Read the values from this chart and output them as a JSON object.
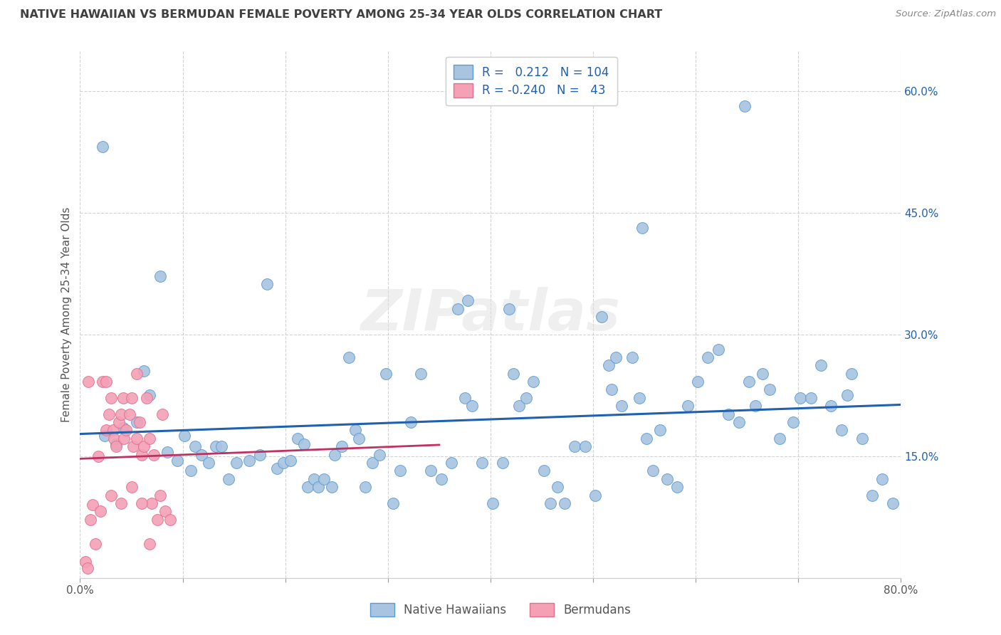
{
  "title": "NATIVE HAWAIIAN VS BERMUDAN FEMALE POVERTY AMONG 25-34 YEAR OLDS CORRELATION CHART",
  "source": "Source: ZipAtlas.com",
  "ylabel": "Female Poverty Among 25-34 Year Olds",
  "xlim": [
    0,
    0.8
  ],
  "ylim": [
    0,
    0.65
  ],
  "xticks": [
    0.0,
    0.1,
    0.2,
    0.3,
    0.4,
    0.5,
    0.6,
    0.7,
    0.8
  ],
  "yticks": [
    0.0,
    0.15,
    0.3,
    0.45,
    0.6
  ],
  "blue_R": 0.212,
  "blue_N": 104,
  "pink_R": -0.24,
  "pink_N": 43,
  "blue_color": "#a8c4e0",
  "pink_color": "#f4a0b5",
  "blue_edge_color": "#5b9bd5",
  "pink_edge_color": "#e07090",
  "blue_line_color": "#2060b0",
  "pink_line_color": "#c03060",
  "background_color": "#ffffff",
  "grid_color": "#c8c8c8",
  "title_color": "#404040",
  "axis_label_color": "#555555",
  "right_tick_color": "#2060b0",
  "legend_label_blue": "Native Hawaiians",
  "legend_label_pink": "Bermudans",
  "blue_scatter_x": [
    0.024,
    0.035,
    0.042,
    0.055,
    0.062,
    0.068,
    0.085,
    0.095,
    0.102,
    0.108,
    0.112,
    0.118,
    0.125,
    0.132,
    0.138,
    0.145,
    0.152,
    0.165,
    0.175,
    0.182,
    0.192,
    0.198,
    0.205,
    0.212,
    0.218,
    0.222,
    0.228,
    0.232,
    0.238,
    0.245,
    0.248,
    0.255,
    0.262,
    0.268,
    0.272,
    0.278,
    0.285,
    0.292,
    0.298,
    0.305,
    0.312,
    0.322,
    0.332,
    0.342,
    0.352,
    0.362,
    0.368,
    0.375,
    0.382,
    0.392,
    0.402,
    0.412,
    0.422,
    0.428,
    0.435,
    0.442,
    0.452,
    0.458,
    0.465,
    0.472,
    0.482,
    0.492,
    0.502,
    0.508,
    0.515,
    0.522,
    0.528,
    0.538,
    0.545,
    0.552,
    0.558,
    0.565,
    0.572,
    0.582,
    0.592,
    0.602,
    0.612,
    0.622,
    0.632,
    0.642,
    0.652,
    0.658,
    0.665,
    0.672,
    0.682,
    0.695,
    0.702,
    0.712,
    0.722,
    0.732,
    0.742,
    0.752,
    0.762,
    0.772,
    0.782,
    0.792,
    0.022,
    0.548,
    0.648,
    0.748,
    0.078,
    0.378,
    0.418,
    0.518
  ],
  "blue_scatter_y": [
    0.175,
    0.165,
    0.185,
    0.192,
    0.255,
    0.225,
    0.155,
    0.145,
    0.175,
    0.132,
    0.162,
    0.152,
    0.142,
    0.162,
    0.162,
    0.122,
    0.142,
    0.145,
    0.152,
    0.362,
    0.135,
    0.142,
    0.145,
    0.172,
    0.165,
    0.112,
    0.122,
    0.112,
    0.122,
    0.112,
    0.152,
    0.162,
    0.272,
    0.182,
    0.172,
    0.112,
    0.142,
    0.152,
    0.252,
    0.092,
    0.132,
    0.192,
    0.252,
    0.132,
    0.122,
    0.142,
    0.332,
    0.222,
    0.212,
    0.142,
    0.092,
    0.142,
    0.252,
    0.212,
    0.222,
    0.242,
    0.132,
    0.092,
    0.112,
    0.092,
    0.162,
    0.162,
    0.102,
    0.322,
    0.262,
    0.272,
    0.212,
    0.272,
    0.222,
    0.172,
    0.132,
    0.182,
    0.122,
    0.112,
    0.212,
    0.242,
    0.272,
    0.282,
    0.202,
    0.192,
    0.242,
    0.212,
    0.252,
    0.232,
    0.172,
    0.192,
    0.222,
    0.222,
    0.262,
    0.212,
    0.182,
    0.252,
    0.172,
    0.102,
    0.122,
    0.092,
    0.532,
    0.432,
    0.582,
    0.225,
    0.372,
    0.342,
    0.332,
    0.232
  ],
  "pink_scatter_x": [
    0.005,
    0.01,
    0.012,
    0.018,
    0.022,
    0.025,
    0.028,
    0.03,
    0.032,
    0.033,
    0.035,
    0.038,
    0.04,
    0.042,
    0.043,
    0.045,
    0.048,
    0.05,
    0.052,
    0.055,
    0.058,
    0.06,
    0.062,
    0.065,
    0.068,
    0.07,
    0.072,
    0.075,
    0.078,
    0.08,
    0.083,
    0.088,
    0.008,
    0.02,
    0.03,
    0.04,
    0.05,
    0.06,
    0.007,
    0.015,
    0.025,
    0.055,
    0.068
  ],
  "pink_scatter_y": [
    0.02,
    0.072,
    0.09,
    0.15,
    0.242,
    0.182,
    0.202,
    0.222,
    0.182,
    0.172,
    0.162,
    0.192,
    0.202,
    0.222,
    0.172,
    0.182,
    0.202,
    0.222,
    0.162,
    0.172,
    0.192,
    0.152,
    0.162,
    0.222,
    0.172,
    0.092,
    0.152,
    0.072,
    0.102,
    0.202,
    0.082,
    0.072,
    0.242,
    0.082,
    0.102,
    0.092,
    0.112,
    0.092,
    0.012,
    0.042,
    0.242,
    0.252,
    0.042
  ],
  "pink_trend_xlim": [
    0.0,
    0.35
  ]
}
